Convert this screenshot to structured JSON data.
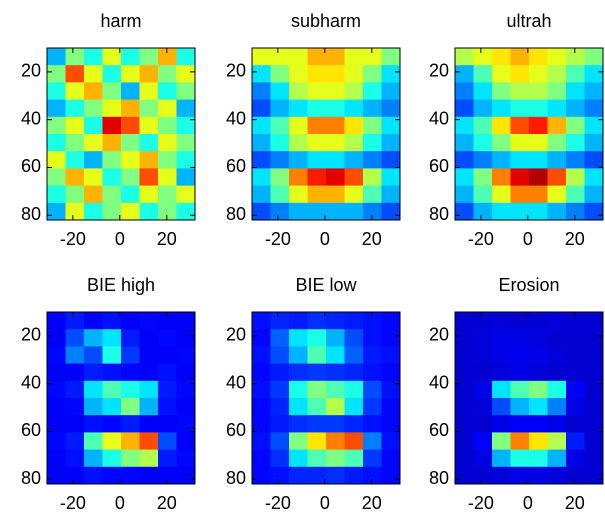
{
  "chart_data": [
    {
      "type": "heatmap",
      "title": "harm",
      "colormap": "jet",
      "clim": [
        0,
        1
      ],
      "xlim": [
        -31,
        32
      ],
      "xticks": [
        -20,
        0,
        20
      ],
      "ylim": [
        10,
        82
      ],
      "yticks": [
        20,
        40,
        60,
        80
      ],
      "y_reversed": true,
      "values": [
        [
          0.3,
          0.5,
          0.4,
          0.6,
          0.4,
          0.5,
          0.7,
          0.4
        ],
        [
          0.5,
          0.8,
          0.6,
          0.4,
          0.6,
          0.7,
          0.5,
          0.6
        ],
        [
          0.4,
          0.6,
          0.7,
          0.5,
          0.3,
          0.6,
          0.4,
          0.5
        ],
        [
          0.3,
          0.4,
          0.5,
          0.6,
          0.7,
          0.5,
          0.6,
          0.3
        ],
        [
          0.5,
          0.6,
          0.4,
          0.9,
          0.8,
          0.6,
          0.5,
          0.4
        ],
        [
          0.4,
          0.5,
          0.6,
          0.7,
          0.5,
          0.4,
          0.6,
          0.5
        ],
        [
          0.6,
          0.4,
          0.3,
          0.5,
          0.6,
          0.7,
          0.5,
          0.4
        ],
        [
          0.5,
          0.7,
          0.6,
          0.4,
          0.5,
          0.8,
          0.6,
          0.3
        ],
        [
          0.4,
          0.5,
          0.7,
          0.5,
          0.4,
          0.6,
          0.5,
          0.6
        ],
        [
          0.3,
          0.6,
          0.4,
          0.5,
          0.6,
          0.4,
          0.5,
          0.4
        ]
      ]
    },
    {
      "type": "heatmap",
      "title": "subharm",
      "colormap": "jet",
      "clim": [
        0,
        1
      ],
      "xlim": [
        -31,
        32
      ],
      "xticks": [
        -20,
        0,
        20
      ],
      "ylim": [
        10,
        82
      ],
      "yticks": [
        20,
        40,
        60,
        80
      ],
      "y_reversed": true,
      "values": [
        [
          0.6,
          0.6,
          0.6,
          0.7,
          0.7,
          0.6,
          0.6,
          0.5
        ],
        [
          0.35,
          0.5,
          0.6,
          0.65,
          0.65,
          0.6,
          0.5,
          0.35
        ],
        [
          0.25,
          0.35,
          0.55,
          0.6,
          0.6,
          0.55,
          0.4,
          0.3
        ],
        [
          0.2,
          0.3,
          0.35,
          0.4,
          0.4,
          0.35,
          0.3,
          0.25
        ],
        [
          0.35,
          0.45,
          0.6,
          0.75,
          0.75,
          0.65,
          0.5,
          0.35
        ],
        [
          0.3,
          0.4,
          0.55,
          0.6,
          0.6,
          0.55,
          0.4,
          0.3
        ],
        [
          0.2,
          0.25,
          0.3,
          0.35,
          0.35,
          0.3,
          0.25,
          0.2
        ],
        [
          0.35,
          0.5,
          0.75,
          0.85,
          0.9,
          0.8,
          0.55,
          0.35
        ],
        [
          0.3,
          0.45,
          0.6,
          0.7,
          0.7,
          0.6,
          0.45,
          0.3
        ],
        [
          0.2,
          0.25,
          0.3,
          0.3,
          0.3,
          0.3,
          0.25,
          0.2
        ]
      ]
    },
    {
      "type": "heatmap",
      "title": "ultrah",
      "colormap": "jet",
      "clim": [
        0,
        1
      ],
      "xlim": [
        -31,
        32
      ],
      "xticks": [
        -20,
        0,
        20
      ],
      "ylim": [
        10,
        82
      ],
      "yticks": [
        20,
        40,
        60,
        80
      ],
      "y_reversed": true,
      "values": [
        [
          0.55,
          0.6,
          0.65,
          0.7,
          0.65,
          0.6,
          0.55,
          0.5
        ],
        [
          0.3,
          0.45,
          0.6,
          0.65,
          0.6,
          0.55,
          0.45,
          0.35
        ],
        [
          0.25,
          0.35,
          0.5,
          0.55,
          0.55,
          0.5,
          0.35,
          0.3
        ],
        [
          0.2,
          0.3,
          0.35,
          0.4,
          0.4,
          0.35,
          0.3,
          0.25
        ],
        [
          0.35,
          0.45,
          0.65,
          0.8,
          0.85,
          0.7,
          0.5,
          0.35
        ],
        [
          0.3,
          0.4,
          0.5,
          0.6,
          0.6,
          0.5,
          0.4,
          0.3
        ],
        [
          0.2,
          0.25,
          0.3,
          0.35,
          0.35,
          0.3,
          0.25,
          0.2
        ],
        [
          0.35,
          0.5,
          0.75,
          0.9,
          0.95,
          0.8,
          0.55,
          0.35
        ],
        [
          0.3,
          0.45,
          0.6,
          0.75,
          0.75,
          0.6,
          0.45,
          0.3
        ],
        [
          0.2,
          0.3,
          0.35,
          0.35,
          0.35,
          0.3,
          0.25,
          0.2
        ]
      ]
    },
    {
      "type": "heatmap",
      "title": "BIE high",
      "colormap": "jet",
      "clim": [
        0,
        1
      ],
      "xlim": [
        -31,
        32
      ],
      "xticks": [
        -20,
        0,
        20
      ],
      "ylim": [
        10,
        82
      ],
      "yticks": [
        20,
        40,
        60,
        80
      ],
      "y_reversed": true,
      "values": [
        [
          0.12,
          0.15,
          0.12,
          0.14,
          0.12,
          0.13,
          0.12,
          0.12
        ],
        [
          0.12,
          0.2,
          0.3,
          0.35,
          0.15,
          0.12,
          0.13,
          0.12
        ],
        [
          0.13,
          0.25,
          0.2,
          0.4,
          0.18,
          0.12,
          0.12,
          0.13
        ],
        [
          0.12,
          0.12,
          0.15,
          0.14,
          0.13,
          0.12,
          0.14,
          0.12
        ],
        [
          0.13,
          0.15,
          0.35,
          0.45,
          0.4,
          0.35,
          0.15,
          0.13
        ],
        [
          0.12,
          0.13,
          0.3,
          0.35,
          0.5,
          0.3,
          0.14,
          0.12
        ],
        [
          0.12,
          0.12,
          0.14,
          0.13,
          0.15,
          0.12,
          0.12,
          0.13
        ],
        [
          0.13,
          0.15,
          0.45,
          0.6,
          0.7,
          0.8,
          0.2,
          0.12
        ],
        [
          0.12,
          0.14,
          0.3,
          0.4,
          0.5,
          0.55,
          0.15,
          0.13
        ],
        [
          0.12,
          0.12,
          0.14,
          0.13,
          0.13,
          0.12,
          0.12,
          0.12
        ]
      ]
    },
    {
      "type": "heatmap",
      "title": "BIE low",
      "colormap": "jet",
      "clim": [
        0,
        1
      ],
      "xlim": [
        -31,
        32
      ],
      "xticks": [
        -20,
        0,
        20
      ],
      "ylim": [
        10,
        82
      ],
      "yticks": [
        20,
        40,
        60,
        80
      ],
      "y_reversed": true,
      "values": [
        [
          0.14,
          0.16,
          0.15,
          0.17,
          0.16,
          0.15,
          0.14,
          0.13
        ],
        [
          0.13,
          0.22,
          0.35,
          0.4,
          0.3,
          0.2,
          0.14,
          0.13
        ],
        [
          0.14,
          0.2,
          0.3,
          0.45,
          0.35,
          0.22,
          0.15,
          0.14
        ],
        [
          0.13,
          0.15,
          0.17,
          0.18,
          0.17,
          0.16,
          0.14,
          0.13
        ],
        [
          0.14,
          0.18,
          0.4,
          0.5,
          0.45,
          0.4,
          0.2,
          0.14
        ],
        [
          0.13,
          0.16,
          0.35,
          0.45,
          0.55,
          0.35,
          0.18,
          0.13
        ],
        [
          0.13,
          0.15,
          0.17,
          0.18,
          0.18,
          0.16,
          0.14,
          0.13
        ],
        [
          0.14,
          0.2,
          0.5,
          0.65,
          0.75,
          0.8,
          0.25,
          0.14
        ],
        [
          0.13,
          0.17,
          0.35,
          0.45,
          0.5,
          0.45,
          0.18,
          0.13
        ],
        [
          0.13,
          0.14,
          0.16,
          0.16,
          0.17,
          0.15,
          0.14,
          0.13
        ]
      ]
    },
    {
      "type": "heatmap",
      "title": "Erosion",
      "colormap": "jet",
      "clim": [
        0,
        1
      ],
      "xlim": [
        -31,
        32
      ],
      "xticks": [
        -20,
        0,
        20
      ],
      "ylim": [
        10,
        82
      ],
      "yticks": [
        20,
        40,
        60,
        80
      ],
      "y_reversed": true,
      "values": [
        [
          0.08,
          0.08,
          0.09,
          0.08,
          0.08,
          0.09,
          0.08,
          0.08
        ],
        [
          0.08,
          0.09,
          0.1,
          0.1,
          0.09,
          0.08,
          0.08,
          0.08
        ],
        [
          0.08,
          0.09,
          0.1,
          0.11,
          0.1,
          0.09,
          0.08,
          0.08
        ],
        [
          0.08,
          0.08,
          0.09,
          0.1,
          0.09,
          0.08,
          0.08,
          0.08
        ],
        [
          0.08,
          0.1,
          0.35,
          0.45,
          0.5,
          0.4,
          0.12,
          0.08
        ],
        [
          0.08,
          0.09,
          0.2,
          0.3,
          0.35,
          0.25,
          0.1,
          0.08
        ],
        [
          0.08,
          0.08,
          0.1,
          0.12,
          0.12,
          0.1,
          0.08,
          0.08
        ],
        [
          0.08,
          0.12,
          0.5,
          0.75,
          0.65,
          0.55,
          0.15,
          0.08
        ],
        [
          0.08,
          0.1,
          0.3,
          0.4,
          0.4,
          0.3,
          0.1,
          0.08
        ],
        [
          0.08,
          0.08,
          0.09,
          0.1,
          0.1,
          0.09,
          0.08,
          0.08
        ]
      ]
    }
  ]
}
